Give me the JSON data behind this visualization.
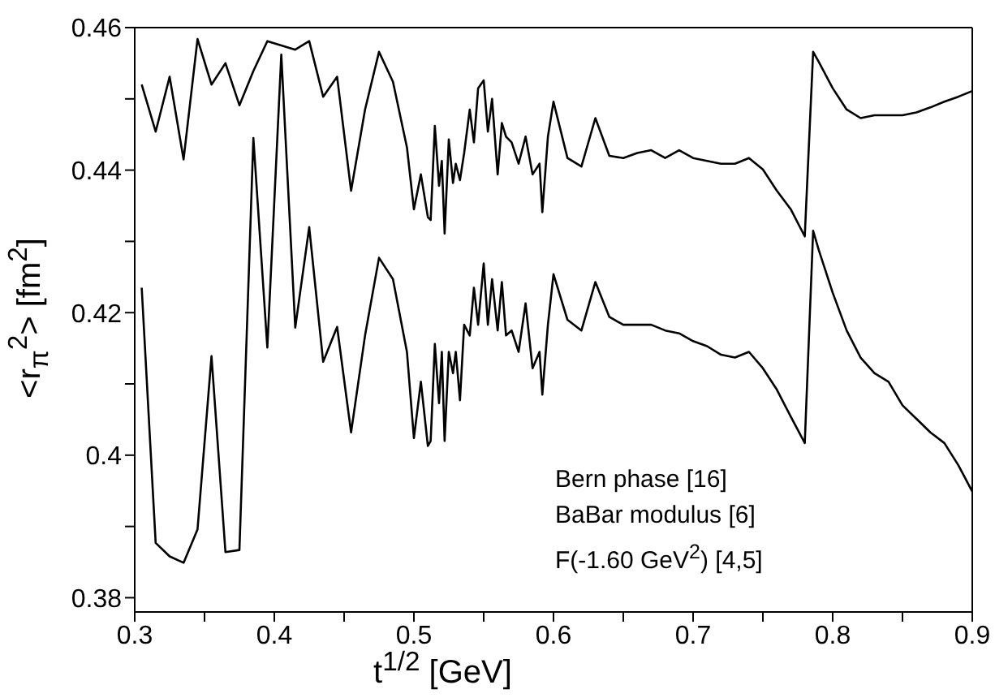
{
  "chart_data": {
    "type": "line",
    "xlabel": "t$^{1/2}$ [GeV]",
    "ylabel": "<r$_{π}$$^{2}$> [fm$^{2}$]",
    "xlim": [
      0.3,
      0.9
    ],
    "xticks": [
      0.3,
      {
        "value": 0.35,
        "label": null
      },
      0.4,
      {
        "value": 0.45,
        "label": null
      },
      0.5,
      {
        "value": 0.55,
        "label": null
      },
      0.6,
      {
        "value": 0.65,
        "label": null
      },
      0.7,
      {
        "value": 0.75,
        "label": null
      },
      0.8,
      {
        "value": 0.85,
        "label": null
      },
      0.9
    ],
    "ylim": [
      0.378,
      0.46
    ],
    "yticks": [
      0.38,
      {
        "value": 0.39,
        "label": null
      },
      0.4,
      {
        "value": 0.41,
        "label": null
      },
      0.42,
      {
        "value": 0.43,
        "label": null
      },
      0.44,
      {
        "value": 0.45,
        "label": null
      },
      0.46
    ],
    "marker": "none",
    "line_style": "solid",
    "annotations": [
      "Bern phase  [16]",
      "BaBar modulus [6]",
      "F(-1.60 GeV$^{2}$) [4,5]"
    ],
    "x": [
      0.305,
      0.315,
      0.325,
      0.335,
      0.345,
      0.355,
      0.365,
      0.375,
      0.385,
      0.395,
      0.405,
      0.415,
      0.425,
      0.435,
      0.445,
      0.455,
      0.465,
      0.475,
      0.485,
      0.495,
      0.5,
      0.505,
      0.51,
      0.512,
      0.515,
      0.518,
      0.52,
      0.522,
      0.525,
      0.528,
      0.53,
      0.533,
      0.536,
      0.54,
      0.543,
      0.546,
      0.55,
      0.553,
      0.556,
      0.56,
      0.563,
      0.566,
      0.57,
      0.575,
      0.58,
      0.585,
      0.59,
      0.592,
      0.596,
      0.6,
      0.61,
      0.62,
      0.63,
      0.64,
      0.65,
      0.66,
      0.67,
      0.68,
      0.69,
      0.7,
      0.71,
      0.72,
      0.73,
      0.74,
      0.75,
      0.76,
      0.77,
      0.78,
      0.786,
      0.79,
      0.8,
      0.81,
      0.82,
      0.83,
      0.84,
      0.85,
      0.86,
      0.87,
      0.88,
      0.89,
      0.9
    ],
    "series": [
      {
        "color": "#000000",
        "values": [
          0.452,
          0.4454,
          0.4531,
          0.4415,
          0.4584,
          0.452,
          0.455,
          0.4491,
          0.4539,
          0.4581,
          0.4575,
          0.4569,
          0.4581,
          0.4503,
          0.4531,
          0.4371,
          0.4485,
          0.4566,
          0.4524,
          0.4432,
          0.4345,
          0.4394,
          0.4334,
          0.433,
          0.4462,
          0.4378,
          0.4413,
          0.4311,
          0.4443,
          0.4382,
          0.4409,
          0.4386,
          0.4424,
          0.4485,
          0.4439,
          0.4515,
          0.4526,
          0.4454,
          0.45,
          0.4394,
          0.4466,
          0.4447,
          0.4439,
          0.4409,
          0.4447,
          0.4394,
          0.4409,
          0.4341,
          0.4447,
          0.4496,
          0.4417,
          0.4405,
          0.4473,
          0.442,
          0.4417,
          0.4424,
          0.4428,
          0.4417,
          0.4428,
          0.4417,
          0.4413,
          0.4409,
          0.4409,
          0.4417,
          0.4401,
          0.4371,
          0.4345,
          0.4307,
          0.4566,
          0.4552,
          0.4515,
          0.4485,
          0.4473,
          0.4477,
          0.4477,
          0.4477,
          0.4481,
          0.4488,
          0.4496,
          0.4503,
          0.4511
        ]
      },
      {
        "color": "#000000",
        "values": [
          0.4235,
          0.3877,
          0.3858,
          0.3849,
          0.3896,
          0.4139,
          0.3864,
          0.3867,
          0.4445,
          0.4151,
          0.4562,
          0.4179,
          0.432,
          0.4131,
          0.418,
          0.4032,
          0.4168,
          0.4277,
          0.4247,
          0.4145,
          0.4024,
          0.4103,
          0.4013,
          0.402,
          0.4156,
          0.4073,
          0.4145,
          0.402,
          0.4145,
          0.4115,
          0.4145,
          0.4077,
          0.4183,
          0.4168,
          0.4235,
          0.4183,
          0.4269,
          0.4183,
          0.4247,
          0.4175,
          0.4243,
          0.4168,
          0.4175,
          0.4145,
          0.4213,
          0.4122,
          0.4145,
          0.4085,
          0.4183,
          0.4254,
          0.419,
          0.4175,
          0.4243,
          0.4194,
          0.4183,
          0.4183,
          0.4183,
          0.4175,
          0.4171,
          0.416,
          0.4153,
          0.4141,
          0.4137,
          0.4145,
          0.4122,
          0.4092,
          0.4054,
          0.4017,
          0.4315,
          0.4288,
          0.4228,
          0.4175,
          0.4137,
          0.4115,
          0.4103,
          0.407,
          0.4051,
          0.4032,
          0.4017,
          0.3986,
          0.3949
        ]
      }
    ]
  }
}
